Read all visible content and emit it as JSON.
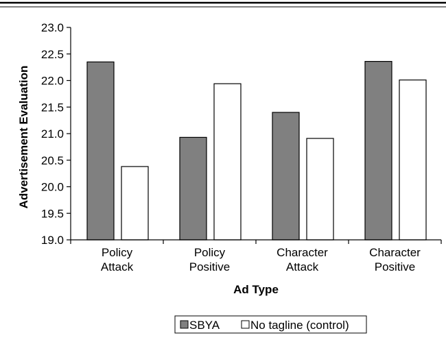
{
  "chart_data": {
    "type": "bar",
    "title": "",
    "xlabel": "Ad Type",
    "ylabel": "Advertisement Evaluation",
    "categories": [
      [
        "Policy",
        "Attack"
      ],
      [
        "Policy",
        "Positive"
      ],
      [
        "Character",
        "Attack"
      ],
      [
        "Character",
        "Positive"
      ]
    ],
    "series": [
      {
        "name": "SBYA",
        "values": [
          22.35,
          20.93,
          21.4,
          22.36
        ],
        "color": "#808080"
      },
      {
        "name": "No tagline (control)",
        "values": [
          20.38,
          21.94,
          20.91,
          22.01
        ],
        "color": "#ffffff"
      }
    ],
    "ylim": [
      19.0,
      23.0
    ],
    "yticks": [
      "19.0",
      "19.5",
      "20.0",
      "20.5",
      "21.0",
      "21.5",
      "22.0",
      "22.5",
      "23.0"
    ],
    "grid": false,
    "legend_position": "bottom-center"
  }
}
